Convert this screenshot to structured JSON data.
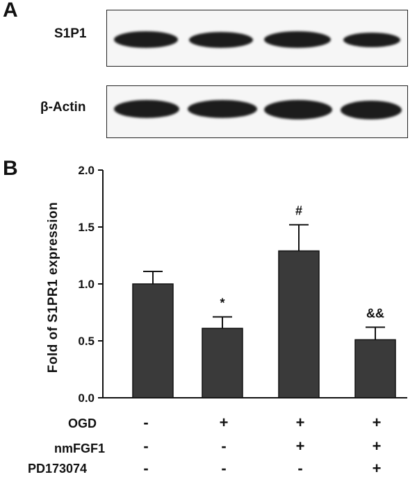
{
  "panel_a": {
    "letter": "A",
    "blots": [
      {
        "label": "S1P1"
      },
      {
        "label": "β-Actin"
      }
    ]
  },
  "panel_b": {
    "letter": "B"
  },
  "chart_data": {
    "type": "bar",
    "title": "",
    "ylabel": "Fold of S1PR1 expression",
    "xlabel": "",
    "ylim": [
      0,
      2.0
    ],
    "yticks": [
      "0.0",
      "0.5",
      "1.0",
      "1.5",
      "2.0"
    ],
    "grid": false,
    "values": [
      1.0,
      0.61,
      1.29,
      0.51
    ],
    "errors": [
      0.11,
      0.1,
      0.23,
      0.11
    ],
    "significance": [
      "",
      "*",
      "#",
      "&&"
    ],
    "bar_color": "#3a3a3a",
    "conditions": [
      {
        "name": "OGD",
        "marks": [
          "-",
          "+",
          "+",
          "+"
        ]
      },
      {
        "name": "nmFGF1",
        "marks": [
          "-",
          "-",
          "+",
          "+"
        ]
      },
      {
        "name": "PD173074",
        "marks": [
          "-",
          "-",
          "-",
          "+"
        ]
      }
    ]
  }
}
